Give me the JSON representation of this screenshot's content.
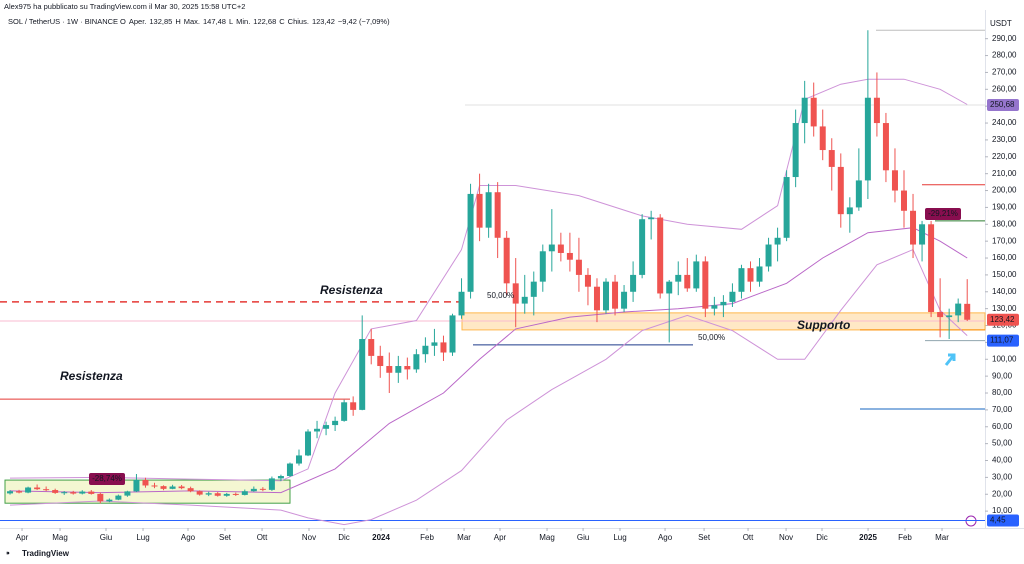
{
  "header": {
    "author_line": "Alex975 ha pubblicato su TradingView.com il Mar 30, 2025 15:58 UTC+2",
    "symbol": "SOL / TetherUS · 1W · BINANCE",
    "ohlc": [
      "O",
      "Aper.",
      "132,85",
      "H",
      "Max.",
      "147,48",
      "L",
      "Min.",
      "122,68",
      "C",
      "Chius.",
      "123,42",
      "−9,42 (−7,09%)"
    ]
  },
  "footer": {
    "brand": "TradingView"
  },
  "chart_data": {
    "type": "candlestick",
    "axis_unit": "USDT",
    "up_color": "#26a69a",
    "down_color": "#ef5350",
    "grid": false,
    "candles": [
      [
        20.5,
        22.5,
        19.8,
        21.8
      ],
      [
        21.8,
        22.6,
        20.5,
        21.0
      ],
      [
        21.0,
        24.5,
        20.6,
        24.0
      ],
      [
        24.0,
        25.8,
        22.5,
        23.0
      ],
      [
        23.0,
        24.6,
        21.8,
        22.5
      ],
      [
        22.5,
        23.3,
        20.2,
        20.8
      ],
      [
        20.8,
        21.9,
        19.6,
        21.2
      ],
      [
        21.2,
        22.0,
        19.8,
        20.4
      ],
      [
        20.4,
        22.4,
        19.9,
        21.6
      ],
      [
        21.6,
        22.5,
        19.8,
        20.2
      ],
      [
        20.2,
        21.0,
        14.6,
        15.8
      ],
      [
        15.8,
        17.5,
        15.3,
        16.8
      ],
      [
        16.8,
        19.8,
        16.5,
        19.2
      ],
      [
        19.2,
        22.1,
        18.5,
        21.7
      ],
      [
        21.7,
        32.0,
        21.3,
        28.5
      ],
      [
        28.5,
        29.8,
        23.9,
        25.2
      ],
      [
        25.2,
        26.8,
        23.6,
        24.8
      ],
      [
        24.8,
        25.3,
        22.4,
        23.2
      ],
      [
        23.2,
        25.6,
        23.0,
        24.6
      ],
      [
        24.6,
        25.5,
        23.0,
        23.6
      ],
      [
        23.6,
        24.5,
        21.2,
        21.8
      ],
      [
        21.8,
        22.3,
        19.2,
        19.8
      ],
      [
        19.8,
        21.5,
        18.9,
        20.6
      ],
      [
        20.6,
        21.3,
        18.6,
        19.1
      ],
      [
        19.1,
        20.8,
        18.5,
        20.2
      ],
      [
        20.2,
        21.0,
        19.0,
        19.6
      ],
      [
        19.6,
        22.8,
        19.3,
        21.8
      ],
      [
        21.8,
        24.6,
        21.5,
        23.2
      ],
      [
        23.2,
        24.2,
        21.8,
        22.6
      ],
      [
        22.6,
        30.5,
        22.0,
        29.4
      ],
      [
        29.4,
        31.6,
        27.8,
        30.8
      ],
      [
        30.8,
        38.8,
        30.2,
        38.2
      ],
      [
        38.2,
        46.5,
        37.0,
        43.0
      ],
      [
        43.0,
        58.5,
        42.6,
        57.2
      ],
      [
        57.2,
        63.5,
        53.2,
        58.8
      ],
      [
        58.8,
        63.0,
        55.0,
        61.0
      ],
      [
        61.0,
        66.0,
        57.5,
        63.5
      ],
      [
        63.5,
        76.0,
        63.0,
        74.5
      ],
      [
        74.5,
        78.0,
        66.5,
        70.0
      ],
      [
        70.0,
        126.0,
        69.8,
        112.0
      ],
      [
        112,
        118,
        97,
        102
      ],
      [
        102,
        108,
        89,
        96
      ],
      [
        96,
        104,
        80,
        92
      ],
      [
        92,
        102,
        86,
        96
      ],
      [
        96,
        101,
        88,
        94
      ],
      [
        94,
        106,
        92,
        103
      ],
      [
        103,
        113,
        98,
        108
      ],
      [
        108,
        118,
        102,
        110
      ],
      [
        110,
        114,
        99,
        104
      ],
      [
        104,
        127,
        102,
        126
      ],
      [
        126,
        148,
        124,
        140
      ],
      [
        140,
        204,
        136,
        198
      ],
      [
        198,
        210,
        170,
        178
      ],
      [
        178,
        204,
        172,
        199
      ],
      [
        199,
        205,
        160,
        172
      ],
      [
        172,
        176,
        138,
        145
      ],
      [
        145,
        160,
        119,
        133
      ],
      [
        133,
        150,
        127,
        137
      ],
      [
        137,
        152,
        126,
        146
      ],
      [
        146,
        168,
        140,
        164
      ],
      [
        164,
        189,
        152,
        168
      ],
      [
        168,
        175,
        158,
        163
      ],
      [
        163,
        175,
        152,
        159
      ],
      [
        159,
        172,
        140,
        150
      ],
      [
        150,
        154,
        132,
        143
      ],
      [
        143,
        148,
        122,
        129
      ],
      [
        129,
        148,
        127,
        146
      ],
      [
        146,
        150,
        126,
        130
      ],
      [
        130,
        144,
        128,
        140
      ],
      [
        140,
        158,
        134,
        150
      ],
      [
        150,
        186,
        148,
        183
      ],
      [
        183,
        188,
        171,
        184
      ],
      [
        184,
        186,
        136,
        139
      ],
      [
        139,
        147,
        110,
        146
      ],
      [
        146,
        158,
        138,
        150
      ],
      [
        150,
        160,
        140,
        142
      ],
      [
        142,
        162,
        140,
        158
      ],
      [
        158,
        161,
        125,
        130
      ],
      [
        130,
        137,
        126,
        132
      ],
      [
        132,
        138,
        125,
        134
      ],
      [
        134,
        145,
        131,
        140
      ],
      [
        140,
        156,
        136,
        154
      ],
      [
        154,
        158,
        140,
        146
      ],
      [
        146,
        160,
        143,
        155
      ],
      [
        155,
        172,
        152,
        168
      ],
      [
        168,
        178,
        158,
        172
      ],
      [
        172,
        212,
        170,
        208
      ],
      [
        208,
        248,
        202,
        240
      ],
      [
        240,
        265,
        228,
        255
      ],
      [
        255,
        264,
        232,
        238
      ],
      [
        238,
        248,
        218,
        224
      ],
      [
        224,
        231,
        200,
        214
      ],
      [
        214,
        222,
        178,
        186
      ],
      [
        186,
        196,
        175,
        190
      ],
      [
        190,
        225,
        188,
        206
      ],
      [
        206,
        295,
        195,
        255
      ],
      [
        255,
        270,
        232,
        240
      ],
      [
        240,
        246,
        205,
        212
      ],
      [
        212,
        225,
        193,
        200
      ],
      [
        200,
        212,
        178,
        188
      ],
      [
        188,
        198,
        160,
        168
      ],
      [
        168,
        182,
        158,
        180
      ],
      [
        180,
        182,
        125,
        128
      ],
      [
        128,
        148,
        113,
        125
      ],
      [
        125,
        130,
        112,
        126
      ],
      [
        126,
        136,
        122,
        133
      ],
      [
        132.85,
        147.48,
        122.68,
        123.42
      ]
    ],
    "xlim": [
      -1.11,
      107.97
    ],
    "xticks": [
      {
        "value": 1.33,
        "label": "Apr"
      },
      {
        "value": 5.54,
        "label": "Mag"
      },
      {
        "value": 10.63,
        "label": "Giu"
      },
      {
        "value": 14.73,
        "label": "Lug"
      },
      {
        "value": 19.71,
        "label": "Ago"
      },
      {
        "value": 23.81,
        "label": "Set"
      },
      {
        "value": 27.91,
        "label": "Ott"
      },
      {
        "value": 33.11,
        "label": "Nov"
      },
      {
        "value": 36.99,
        "label": "Dic"
      },
      {
        "value": 41.09,
        "label": "2024"
      },
      {
        "value": 46.18,
        "label": "Feb"
      },
      {
        "value": 50.28,
        "label": "Mar"
      },
      {
        "value": 54.26,
        "label": "Apr"
      },
      {
        "value": 59.47,
        "label": "Mag"
      },
      {
        "value": 63.46,
        "label": "Giu"
      },
      {
        "value": 67.55,
        "label": "Lug"
      },
      {
        "value": 72.54,
        "label": "Ago"
      },
      {
        "value": 76.86,
        "label": "Set"
      },
      {
        "value": 81.73,
        "label": "Ott"
      },
      {
        "value": 85.94,
        "label": "Nov"
      },
      {
        "value": 89.92,
        "label": "Dic"
      },
      {
        "value": 95.02,
        "label": "2025"
      },
      {
        "value": 99.11,
        "label": "Feb"
      },
      {
        "value": 103.21,
        "label": "Mar"
      }
    ],
    "ylim": [
      0,
      307
    ],
    "yticks": [
      {
        "value": 10,
        "label": "10,00"
      },
      {
        "value": 20,
        "label": "20,00"
      },
      {
        "value": 30,
        "label": "30,00"
      },
      {
        "value": 40,
        "label": "40,00"
      },
      {
        "value": 50,
        "label": "50,00"
      },
      {
        "value": 60,
        "label": "60,00"
      },
      {
        "value": 70,
        "label": "70,00"
      },
      {
        "value": 80,
        "label": "80,00"
      },
      {
        "value": 90,
        "label": "90,00"
      },
      {
        "value": 100,
        "label": "100,00"
      },
      {
        "value": 110,
        "label": "110,00"
      },
      {
        "value": 120,
        "label": "120,00"
      },
      {
        "value": 130,
        "label": "130,00"
      },
      {
        "value": 140,
        "label": "140,00"
      },
      {
        "value": 150,
        "label": "150,00"
      },
      {
        "value": 160,
        "label": "160,00"
      },
      {
        "value": 170,
        "label": "170,00"
      },
      {
        "value": 180,
        "label": "180,00"
      },
      {
        "value": 190,
        "label": "190,00"
      },
      {
        "value": 200,
        "label": "200,00"
      },
      {
        "value": 210,
        "label": "210,00"
      },
      {
        "value": 220,
        "label": "220,00"
      },
      {
        "value": 230,
        "label": "230,00"
      },
      {
        "value": 240,
        "label": "240,00"
      },
      {
        "value": 250,
        "label": "250,00"
      },
      {
        "value": 260,
        "label": "260,00"
      },
      {
        "value": 270,
        "label": "270,00"
      },
      {
        "value": 280,
        "label": "280,00"
      },
      {
        "value": 290,
        "label": "290,00"
      }
    ],
    "overlays": [
      {
        "color": "#ce93d8",
        "x": [
          0,
          10,
          20,
          30,
          33,
          36,
          40,
          45,
          50,
          52,
          56,
          63,
          70,
          75,
          81,
          85,
          88,
          92,
          95,
          99,
          103,
          106
        ],
        "values": [
          29.6,
          30,
          29,
          28,
          35,
          80,
          118,
          123,
          165,
          203,
          203,
          197,
          185,
          180,
          177,
          191,
          254,
          263,
          266,
          266,
          260,
          251
        ]
      },
      {
        "color": "#ba68c8",
        "x": [
          0,
          10,
          20,
          30,
          36,
          42,
          48,
          52,
          56,
          62,
          68,
          74,
          80,
          86,
          90,
          95,
          100,
          103,
          106
        ],
        "values": [
          22,
          21,
          22,
          21,
          35,
          62,
          80,
          100,
          118,
          125,
          128,
          130,
          133,
          145,
          160,
          175,
          178,
          170,
          160
        ]
      },
      {
        "color": "#ce93d8",
        "x": [
          0,
          10,
          20,
          30,
          33,
          37,
          40,
          45,
          50,
          55,
          60,
          66,
          70,
          75,
          80,
          85,
          88,
          92,
          96,
          100,
          103,
          106
        ],
        "values": [
          13.6,
          16,
          13.6,
          10.6,
          6,
          2,
          5,
          16.5,
          34,
          64,
          82,
          100,
          117,
          126,
          117,
          100,
          100,
          129,
          156,
          165,
          129,
          114
        ]
      }
    ],
    "zones": [
      {
        "range": [
          117.4,
          127.5
        ],
        "color": "#ffe0b2",
        "border": "#ffb74d"
      },
      {
        "range": [
          14.7,
          28.4
        ],
        "color": "#f0f4c3",
        "border": "#43a047"
      }
    ],
    "levels": [
      {
        "value": 134,
        "color": "#e53935",
        "dashed": true
      },
      {
        "value": 76.4,
        "color": "#e53935",
        "dashed": false
      },
      {
        "value": 122.7,
        "color": "#f8bbd0",
        "dashed": false
      },
      {
        "value": 108.5,
        "color": "#1e3a8a",
        "dashed": false
      },
      {
        "value": 203.4,
        "color": "#e53935",
        "dashed": false
      },
      {
        "value": 182,
        "color": "#2e7d32",
        "dashed": false
      },
      {
        "value": 70.5,
        "color": "#1565c0",
        "dashed": false
      },
      {
        "value": 117.4,
        "color": "#fb8c00",
        "dashed": false
      },
      {
        "value": 295,
        "color": "#bdbdbd",
        "dashed": false
      },
      {
        "value": 250.68,
        "color": "#e0e0e0",
        "dashed": false
      },
      {
        "value": 4.45,
        "color": "#2962ff",
        "dashed": false
      },
      {
        "value": 111.07,
        "color": "#90a4ae",
        "dashed": false
      }
    ],
    "annotations": [
      {
        "text": "Resistenza",
        "color": "#c62828"
      },
      {
        "text": "Resistenza",
        "color": "#e53950"
      },
      {
        "text": "Supporto",
        "color": "#5c6bc0"
      }
    ],
    "fib_labels": [
      {
        "text": "50,00%",
        "color": "#ef5350"
      },
      {
        "text": "50,00%",
        "color": "#3f51b5"
      }
    ],
    "flags": [
      {
        "label": "-28,74%",
        "color": "#880e4f"
      },
      {
        "label": "-29,21%",
        "color": "#880e4f"
      }
    ],
    "price_labels": [
      {
        "value": 250.68,
        "label": "250,68",
        "color": "#9575cd"
      },
      {
        "value": 123.42,
        "label": "123,42",
        "color": "#ef5350"
      },
      {
        "value": 111.07,
        "label": "111,07",
        "color": "#2962ff"
      },
      {
        "value": 4.45,
        "label": "4,45",
        "color": "#2962ff"
      }
    ]
  }
}
